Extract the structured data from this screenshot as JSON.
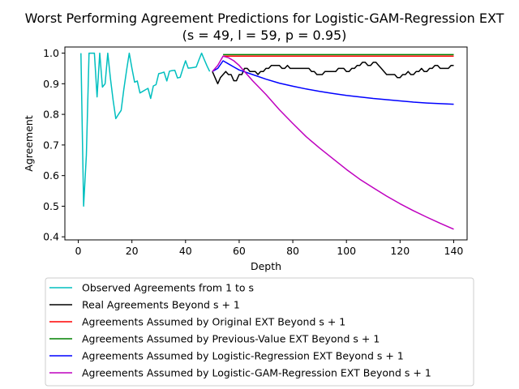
{
  "chart_data": {
    "type": "line",
    "title": "Worst Performing Agreement Predictions for Logistic-GAM-Regression EXT",
    "subtitle": "(s = 49, l = 59, p = 0.95)",
    "xlabel": "Depth",
    "ylabel": "Agreement",
    "xlim": [
      -5,
      145
    ],
    "ylim": [
      0.39,
      1.02
    ],
    "xticks": [
      0,
      20,
      40,
      60,
      80,
      100,
      120,
      140
    ],
    "yticks": [
      0.4,
      0.5,
      0.6,
      0.7,
      0.8,
      0.9,
      1.0
    ],
    "xtick_labels": [
      "0",
      "20",
      "40",
      "60",
      "80",
      "100",
      "120",
      "140"
    ],
    "ytick_labels": [
      "0.4",
      "0.5",
      "0.6",
      "0.7",
      "0.8",
      "0.9",
      "1.0"
    ],
    "grid": false,
    "legend_position": "below",
    "series": [
      {
        "name": "Observed Agreements from 1 to s",
        "color": "#00bfbf",
        "x": [
          1,
          2,
          3,
          4,
          5,
          6,
          7,
          8,
          9,
          10,
          11,
          12,
          13,
          14,
          15,
          16,
          17,
          18,
          19,
          20,
          21,
          22,
          23,
          24,
          25,
          26,
          27,
          28,
          29,
          30,
          31,
          32,
          33,
          34,
          35,
          36,
          37,
          38,
          39,
          40,
          41,
          42,
          43,
          44,
          45,
          46,
          47,
          48,
          49
        ],
        "y": [
          1.0,
          0.5,
          0.667,
          1.0,
          1.0,
          1.0,
          0.857,
          1.0,
          0.889,
          0.9,
          1.0,
          0.917,
          0.846,
          0.786,
          0.8,
          0.813,
          0.882,
          0.944,
          1.0,
          0.95,
          0.905,
          0.909,
          0.87,
          0.875,
          0.88,
          0.885,
          0.852,
          0.893,
          0.897,
          0.933,
          0.935,
          0.938,
          0.909,
          0.941,
          0.943,
          0.944,
          0.919,
          0.921,
          0.949,
          0.975,
          0.951,
          0.952,
          0.953,
          0.955,
          0.978,
          1.0,
          0.979,
          0.958,
          0.94
        ]
      },
      {
        "name": "Real Agreements Beyond s + 1",
        "color": "#000000",
        "x": [
          50,
          51,
          52,
          53,
          54,
          55,
          56,
          57,
          58,
          59,
          60,
          61,
          62,
          63,
          64,
          65,
          66,
          67,
          68,
          69,
          70,
          71,
          72,
          73,
          74,
          75,
          76,
          77,
          78,
          79,
          80,
          81,
          82,
          83,
          84,
          85,
          86,
          87,
          88,
          89,
          90,
          91,
          92,
          93,
          94,
          95,
          96,
          97,
          98,
          99,
          100,
          101,
          102,
          103,
          104,
          105,
          106,
          107,
          108,
          109,
          110,
          111,
          112,
          113,
          114,
          115,
          116,
          117,
          118,
          119,
          120,
          121,
          122,
          123,
          124,
          125,
          126,
          127,
          128,
          129,
          130,
          131,
          132,
          133,
          134,
          135,
          136,
          137,
          138,
          139,
          140
        ],
        "y": [
          0.94,
          0.92,
          0.9,
          0.92,
          0.93,
          0.94,
          0.93,
          0.93,
          0.91,
          0.91,
          0.93,
          0.93,
          0.95,
          0.95,
          0.94,
          0.94,
          0.94,
          0.93,
          0.94,
          0.94,
          0.95,
          0.95,
          0.96,
          0.96,
          0.96,
          0.96,
          0.95,
          0.95,
          0.96,
          0.95,
          0.95,
          0.95,
          0.95,
          0.95,
          0.95,
          0.95,
          0.95,
          0.94,
          0.94,
          0.93,
          0.93,
          0.93,
          0.94,
          0.94,
          0.94,
          0.94,
          0.94,
          0.95,
          0.95,
          0.95,
          0.94,
          0.94,
          0.95,
          0.95,
          0.96,
          0.96,
          0.97,
          0.97,
          0.96,
          0.96,
          0.97,
          0.97,
          0.96,
          0.95,
          0.94,
          0.93,
          0.93,
          0.93,
          0.93,
          0.92,
          0.92,
          0.93,
          0.93,
          0.94,
          0.93,
          0.93,
          0.94,
          0.94,
          0.95,
          0.94,
          0.94,
          0.95,
          0.95,
          0.96,
          0.96,
          0.95,
          0.95,
          0.95,
          0.95,
          0.96,
          0.96
        ]
      },
      {
        "name": "Agreements Assumed by Original EXT Beyond s + 1",
        "color": "#ff0000",
        "x": [
          54,
          140
        ],
        "y": [
          0.99,
          0.99
        ]
      },
      {
        "name": "Agreements Assumed by Previous-Value EXT Beyond s + 1",
        "color": "#008000",
        "x": [
          54,
          140
        ],
        "y": [
          0.995,
          0.995
        ]
      },
      {
        "name": "Agreements Assumed by Logistic-Regression EXT Beyond s + 1",
        "color": "#0000ff",
        "x": [
          50,
          52,
          54,
          56,
          58,
          60,
          65,
          70,
          75,
          80,
          85,
          90,
          95,
          100,
          105,
          110,
          115,
          120,
          125,
          130,
          135,
          140
        ],
        "y": [
          0.94,
          0.95,
          0.975,
          0.965,
          0.955,
          0.945,
          0.93,
          0.915,
          0.902,
          0.892,
          0.883,
          0.875,
          0.868,
          0.862,
          0.857,
          0.852,
          0.848,
          0.844,
          0.84,
          0.837,
          0.835,
          0.833
        ]
      },
      {
        "name": "Agreements Assumed by Logistic-GAM-Regression EXT Beyond s + 1",
        "color": "#bf00bf",
        "x": [
          50,
          52,
          54,
          56,
          58,
          60,
          62,
          65,
          70,
          75,
          80,
          85,
          90,
          95,
          100,
          105,
          110,
          115,
          120,
          125,
          130,
          135,
          140
        ],
        "y": [
          0.94,
          0.96,
          0.99,
          0.985,
          0.975,
          0.96,
          0.94,
          0.91,
          0.865,
          0.815,
          0.77,
          0.727,
          0.69,
          0.655,
          0.62,
          0.588,
          0.56,
          0.533,
          0.508,
          0.485,
          0.464,
          0.444,
          0.425
        ]
      }
    ]
  }
}
